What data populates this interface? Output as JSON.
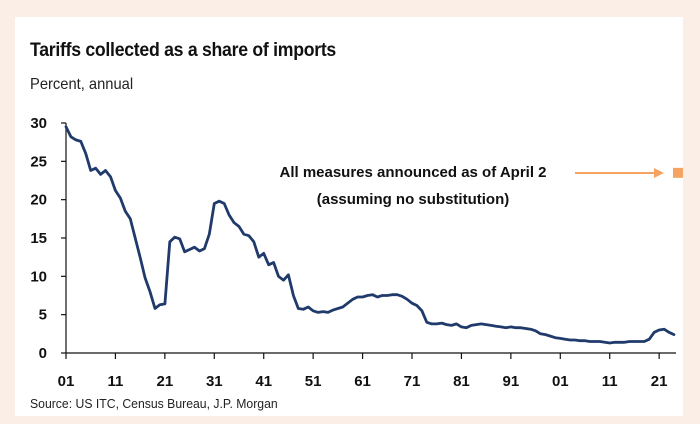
{
  "chart_data": {
    "type": "line",
    "title": "Tariffs collected as a share of imports",
    "subtitle": "Percent, annual",
    "source": "Source: US ITC, Census Bureau, J.P. Morgan",
    "xlabel": "",
    "ylabel": "",
    "xlim": [
      1901,
      2025
    ],
    "ylim": [
      0,
      30
    ],
    "x_tick_labels": [
      "01",
      "11",
      "21",
      "31",
      "41",
      "51",
      "61",
      "71",
      "81",
      "91",
      "01",
      "11",
      "21"
    ],
    "x_tick_years": [
      1901,
      1911,
      1921,
      1931,
      1941,
      1951,
      1961,
      1971,
      1981,
      1991,
      2001,
      2011,
      2021
    ],
    "y_ticks": [
      0,
      5,
      10,
      15,
      20,
      25,
      30
    ],
    "grid": false,
    "line_color": "#1f3a6b",
    "marker_color": "#f4a460",
    "series": [
      {
        "x": [
          1901,
          1902,
          1903,
          1904,
          1905,
          1906,
          1907,
          1908,
          1909,
          1910,
          1911,
          1912,
          1913,
          1914,
          1915,
          1916,
          1917,
          1918,
          1919,
          1920,
          1921,
          1922,
          1923,
          1924,
          1925,
          1926,
          1927,
          1928,
          1929,
          1930,
          1931,
          1932,
          1933,
          1934,
          1935,
          1936,
          1937,
          1938,
          1939,
          1940,
          1941,
          1942,
          1943,
          1944,
          1945,
          1946,
          1947,
          1948,
          1949,
          1950,
          1951,
          1952,
          1953,
          1954,
          1955,
          1956,
          1957,
          1958,
          1959,
          1960,
          1961,
          1962,
          1963,
          1964,
          1965,
          1966,
          1967,
          1968,
          1969,
          1970,
          1971,
          1972,
          1973,
          1974,
          1975,
          1976,
          1977,
          1978,
          1979,
          1980,
          1981,
          1982,
          1983,
          1984,
          1985,
          1986,
          1987,
          1988,
          1989,
          1990,
          1991,
          1992,
          1993,
          1994,
          1995,
          1996,
          1997,
          1998,
          1999,
          2000,
          2001,
          2002,
          2003,
          2004,
          2005,
          2006,
          2007,
          2008,
          2009,
          2010,
          2011,
          2012,
          2013,
          2014,
          2015,
          2016,
          2017,
          2018,
          2019,
          2020,
          2021,
          2022,
          2023,
          2024
        ],
        "values": [
          29.5,
          28.2,
          27.8,
          27.6,
          26,
          23.8,
          24.1,
          23.3,
          23.8,
          23,
          21.2,
          20.2,
          18.5,
          17.5,
          15,
          12.5,
          9.8,
          8,
          5.8,
          6.3,
          6.4,
          14.5,
          15.1,
          14.9,
          13.2,
          13.5,
          13.8,
          13.3,
          13.6,
          15.5,
          19.5,
          19.8,
          19.5,
          18,
          17,
          16.5,
          15.5,
          15.3,
          14.5,
          12.5,
          13,
          11.5,
          11.8,
          10,
          9.5,
          10.2,
          7.5,
          5.8,
          5.7,
          6,
          5.5,
          5.3,
          5.4,
          5.3,
          5.6,
          5.8,
          6,
          6.5,
          7,
          7.3,
          7.3,
          7.5,
          7.6,
          7.3,
          7.5,
          7.5,
          7.6,
          7.6,
          7.4,
          7,
          6.5,
          6.2,
          5.5,
          4,
          3.8,
          3.8,
          3.9,
          3.7,
          3.6,
          3.8,
          3.4,
          3.3,
          3.6,
          3.7,
          3.8,
          3.7,
          3.6,
          3.5,
          3.4,
          3.3,
          3.4,
          3.3,
          3.3,
          3.2,
          3.1,
          2.9,
          2.5,
          2.4,
          2.2,
          2,
          1.9,
          1.8,
          1.7,
          1.7,
          1.6,
          1.6,
          1.5,
          1.5,
          1.5,
          1.4,
          1.3,
          1.4,
          1.4,
          1.4,
          1.5,
          1.5,
          1.5,
          1.5,
          1.8,
          2.7,
          3.0,
          3.1,
          2.7,
          2.4
        ]
      }
    ],
    "annotation": {
      "line1": "All measures announced as of April 2",
      "line2": "(assuming no substitution)",
      "x": 2024,
      "value": 23.5
    }
  }
}
